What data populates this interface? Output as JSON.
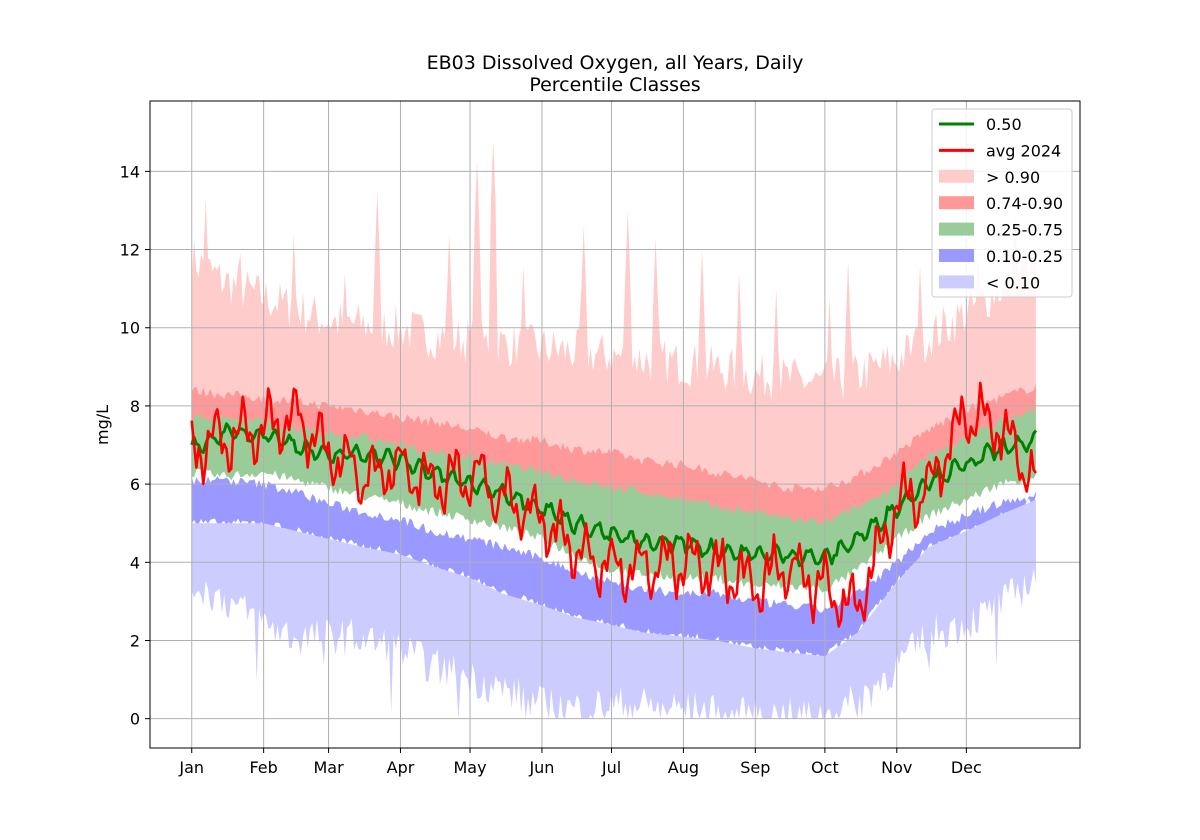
{
  "chart_data": {
    "type": "area",
    "title": "EB03 Dissolved Oxygen, all Years, Daily",
    "subtitle": "Percentile Classes",
    "xlabel": "",
    "ylabel": "mg/L",
    "x_tick_labels": [
      "Jan",
      "Feb",
      "Mar",
      "Apr",
      "May",
      "Jun",
      "Jul",
      "Aug",
      "Sep",
      "Oct",
      "Nov",
      "Dec"
    ],
    "x_tick_days": [
      1,
      32,
      60,
      91,
      121,
      152,
      182,
      213,
      244,
      274,
      305,
      335
    ],
    "xlim": [
      -17,
      384
    ],
    "ylim": [
      -0.75,
      15.8
    ],
    "y_ticks": [
      0,
      2,
      4,
      6,
      8,
      10,
      12,
      14
    ],
    "y_tick_labels": [
      "0",
      "2",
      "4",
      "6",
      "8",
      "10",
      "12",
      "14"
    ],
    "grid": true,
    "legend_position": "top-right",
    "x_days": [
      1,
      15,
      32,
      46,
      60,
      74,
      91,
      105,
      121,
      135,
      152,
      166,
      182,
      196,
      213,
      227,
      244,
      258,
      274,
      288,
      305,
      319,
      335,
      349,
      365
    ],
    "bands": [
      {
        "name": "> 0.90",
        "color": "#ffcccc",
        "opacity": 1,
        "lower": [
          8.3,
          8.2,
          8.0,
          7.8,
          7.8,
          7.6,
          7.4,
          7.2,
          7.0,
          6.8,
          6.6,
          6.4,
          6.2,
          6.0,
          5.9,
          5.7,
          5.6,
          5.5,
          5.5,
          5.8,
          6.4,
          7.0,
          7.6,
          8.0,
          8.3
        ],
        "upper": [
          11.6,
          11.0,
          10.6,
          10.3,
          10.0,
          9.9,
          9.8,
          9.6,
          9.5,
          9.4,
          9.3,
          9.2,
          9.1,
          9.0,
          8.9,
          8.8,
          8.6,
          8.5,
          8.4,
          8.6,
          9.0,
          9.6,
          10.2,
          10.8,
          11.4
        ],
        "peaks": [
          [
            7,
            13.3
          ],
          [
            22,
            11.9
          ],
          [
            45,
            12.4
          ],
          [
            67,
            11.4
          ],
          [
            81,
            13.5
          ],
          [
            112,
            12.4
          ],
          [
            124,
            14.3
          ],
          [
            131,
            14.8
          ],
          [
            144,
            11.6
          ],
          [
            170,
            12.6
          ],
          [
            189,
            13.0
          ],
          [
            201,
            12.3
          ],
          [
            221,
            12.0
          ],
          [
            237,
            11.4
          ],
          [
            253,
            11.0
          ],
          [
            276,
            10.8
          ],
          [
            284,
            11.7
          ],
          [
            315,
            11.6
          ],
          [
            340,
            11.9
          ],
          [
            356,
            13.0
          ]
        ]
      },
      {
        "name": "0.74-0.90",
        "color": "#ff9999",
        "opacity": 1,
        "lower": [
          7.1,
          7.0,
          7.0,
          6.8,
          6.7,
          6.6,
          6.4,
          6.3,
          6.0,
          5.8,
          5.6,
          5.5,
          5.3,
          5.1,
          5.0,
          4.9,
          4.7,
          4.6,
          4.6,
          4.9,
          5.6,
          6.1,
          6.6,
          7.0,
          7.2
        ],
        "upper": [
          8.4,
          8.3,
          8.2,
          8.1,
          8.0,
          7.9,
          7.7,
          7.6,
          7.4,
          7.2,
          7.1,
          6.9,
          6.8,
          6.6,
          6.5,
          6.3,
          6.1,
          5.9,
          5.9,
          6.2,
          6.8,
          7.4,
          7.9,
          8.2,
          8.5
        ]
      },
      {
        "name": "0.25-0.75",
        "color": "#99cc99",
        "opacity": 1,
        "lower": [
          6.3,
          6.2,
          6.3,
          6.1,
          5.9,
          5.7,
          5.5,
          5.3,
          5.1,
          4.9,
          4.6,
          4.2,
          3.8,
          3.7,
          3.6,
          3.6,
          3.4,
          3.4,
          3.3,
          3.8,
          4.6,
          5.2,
          5.6,
          6.0,
          6.2
        ],
        "upper": [
          7.7,
          7.7,
          7.6,
          7.4,
          7.3,
          7.2,
          7.0,
          6.8,
          6.7,
          6.5,
          6.3,
          6.1,
          5.9,
          5.8,
          5.6,
          5.4,
          5.3,
          5.1,
          5.0,
          5.4,
          6.0,
          6.7,
          7.2,
          7.6,
          7.9
        ]
      },
      {
        "name": "0.10-0.25",
        "color": "#9999ff",
        "opacity": 1,
        "lower": [
          5.0,
          5.0,
          5.0,
          4.8,
          4.6,
          4.4,
          4.2,
          3.9,
          3.6,
          3.2,
          2.9,
          2.6,
          2.4,
          2.2,
          2.1,
          2.0,
          1.8,
          1.7,
          1.6,
          2.2,
          3.5,
          4.4,
          4.8,
          5.2,
          5.6
        ],
        "upper": [
          6.1,
          6.1,
          6.0,
          5.8,
          5.5,
          5.3,
          5.1,
          4.8,
          4.6,
          4.4,
          4.1,
          3.8,
          3.5,
          3.3,
          3.2,
          3.2,
          3.0,
          2.9,
          2.8,
          3.2,
          4.0,
          4.8,
          5.2,
          5.5,
          5.7
        ]
      },
      {
        "name": "< 0.10",
        "color": "#ccccff",
        "opacity": 1,
        "lower": [
          3.6,
          3.2,
          2.6,
          2.2,
          2.3,
          2.2,
          1.9,
          1.5,
          1.2,
          0.9,
          0.5,
          0.4,
          0.5,
          0.5,
          0.4,
          0.3,
          0.2,
          0.2,
          0.2,
          0.6,
          1.5,
          2.3,
          2.6,
          3.0,
          3.8
        ],
        "upper": [
          5.0,
          5.0,
          5.0,
          4.8,
          4.6,
          4.4,
          4.2,
          3.9,
          3.6,
          3.2,
          2.9,
          2.6,
          2.4,
          2.2,
          2.1,
          2.0,
          1.8,
          1.7,
          1.6,
          2.2,
          3.5,
          4.4,
          4.8,
          5.2,
          5.6
        ]
      }
    ],
    "series": [
      {
        "name": "0.50",
        "color": "#008000",
        "values": [
          6.9,
          7.3,
          7.3,
          7.0,
          6.7,
          6.8,
          6.6,
          6.3,
          6.0,
          5.8,
          5.4,
          5.0,
          4.7,
          4.5,
          4.5,
          4.3,
          4.2,
          4.2,
          4.1,
          4.6,
          5.4,
          6.1,
          6.5,
          6.9,
          7.1
        ]
      },
      {
        "name": "avg 2024",
        "color": "#ff0000",
        "values": [
          6.9,
          7.1,
          7.5,
          7.7,
          6.8,
          6.2,
          6.4,
          6.0,
          6.3,
          5.6,
          5.1,
          4.3,
          3.8,
          3.9,
          4.0,
          3.8,
          3.5,
          3.9,
          3.3,
          2.8,
          5.5,
          5.9,
          7.9,
          7.4,
          6.0
        ]
      }
    ]
  }
}
